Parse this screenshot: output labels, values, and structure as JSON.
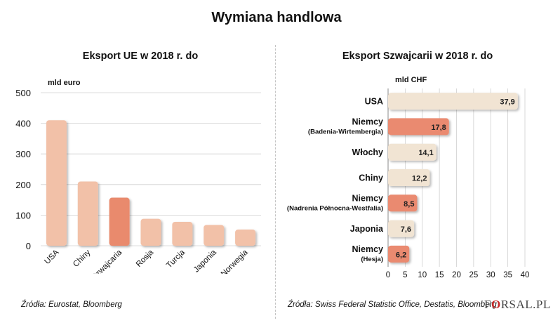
{
  "title": "Wymiana handlowa",
  "left_panel": {
    "title": "Eksport UE w 2018 r. do",
    "unit": "mld euro",
    "source": "Źródła: Eurostat, Bloomberg"
  },
  "right_panel": {
    "title": "Eksport Szwajcarii w 2018 r. do",
    "unit": "mld CHF",
    "source": "Źródła: Swiss Federal Statistic Office, Destatis, Bloomberg"
  },
  "logo": {
    "prefix": "F",
    "mark": "O",
    "suffix": "RSAL.PL"
  },
  "colors": {
    "light": "#f2c1a8",
    "highlight": "#e98a6d",
    "right_light": "#f1e4d3",
    "right_highlight": "#ea8a70",
    "grid": "#d0d0d0"
  },
  "chart_data": [
    {
      "type": "bar",
      "title": "Eksport UE w 2018 r. do",
      "ylabel": "mld euro",
      "categories": [
        "USA",
        "Chiny",
        "Szwajcaria",
        "Rosja",
        "Turcja",
        "Japonia",
        "Norwegia"
      ],
      "values": [
        410,
        210,
        157,
        88,
        78,
        68,
        53
      ],
      "highlight": [
        false,
        false,
        true,
        false,
        false,
        false,
        false
      ],
      "ylim": [
        0,
        500
      ],
      "yticks": [
        0,
        100,
        200,
        300,
        400,
        500
      ],
      "grid": true
    },
    {
      "type": "bar",
      "orientation": "horizontal",
      "title": "Eksport Szwajcarii w 2018 r. do",
      "xlabel": "mld CHF",
      "categories": [
        {
          "name": "USA",
          "sub": ""
        },
        {
          "name": "Niemcy",
          "sub": "(Badenia-Wirtembergia)"
        },
        {
          "name": "Włochy",
          "sub": ""
        },
        {
          "name": "Chiny",
          "sub": ""
        },
        {
          "name": "Niemcy",
          "sub": "(Nadrenia Północna-Westfalia)"
        },
        {
          "name": "Japonia",
          "sub": ""
        },
        {
          "name": "Niemcy",
          "sub": "(Hesja)"
        }
      ],
      "values": [
        37.9,
        17.8,
        14.1,
        12.2,
        8.5,
        7.6,
        6.2
      ],
      "value_labels": [
        "37,9",
        "17,8",
        "14,1",
        "12,2",
        "8,5",
        "7,6",
        "6,2"
      ],
      "highlight": [
        false,
        true,
        false,
        false,
        true,
        false,
        true
      ],
      "xlim": [
        0,
        40
      ],
      "xticks": [
        0,
        5,
        10,
        15,
        20,
        25,
        30,
        35,
        40
      ],
      "grid": true
    }
  ]
}
